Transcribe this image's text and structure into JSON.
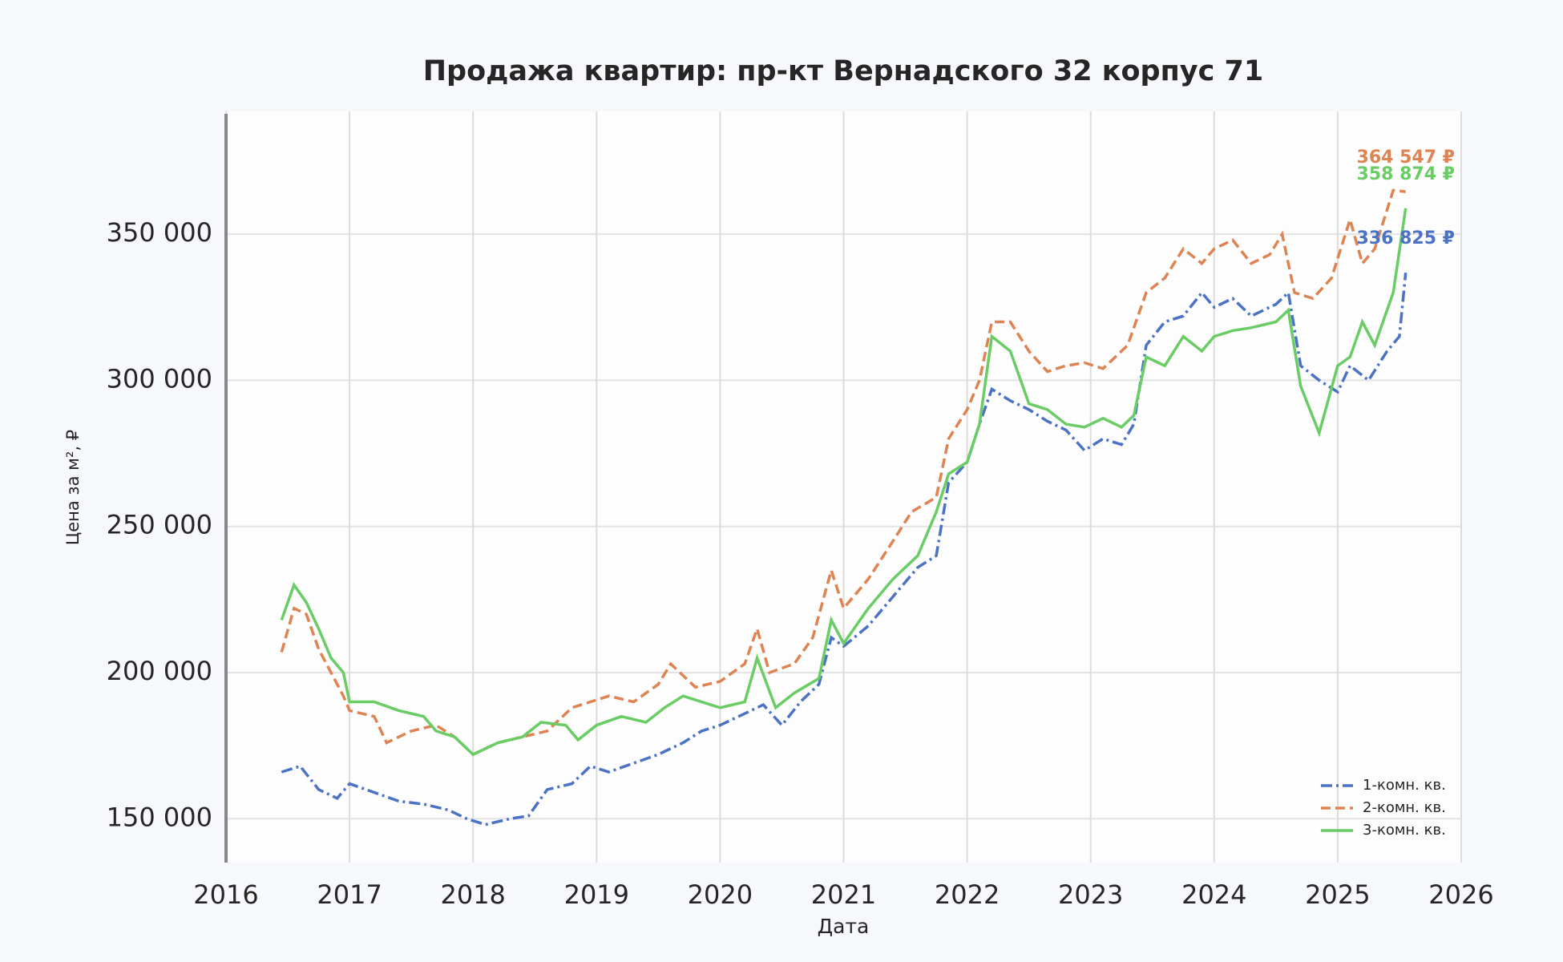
{
  "chart_data": {
    "type": "line",
    "title": "Продажа квартир: пр-кт Вернадского 32 корпус 71",
    "x_label": "Дата",
    "y_label": "Цена за м², ₽",
    "xlim": [
      2016,
      2026
    ],
    "xticks": [
      2016,
      2017,
      2018,
      2019,
      2020,
      2021,
      2022,
      2023,
      2024,
      2025,
      2026
    ],
    "ylim": [
      135000,
      392000
    ],
    "yticks": [
      {
        "value": 150000,
        "label": "150 000"
      },
      {
        "value": 200000,
        "label": "200 000"
      },
      {
        "value": 250000,
        "label": "250 000"
      },
      {
        "value": 300000,
        "label": "300 000"
      },
      {
        "value": 350000,
        "label": "350 000"
      }
    ],
    "grid": true,
    "legend": "lower right",
    "series": [
      {
        "name": "1-комн. кв.",
        "color": "#4c72c4",
        "linestyle": "dashdot",
        "x": [
          2016.45,
          2016.6,
          2016.75,
          2016.9,
          2017.0,
          2017.2,
          2017.4,
          2017.6,
          2017.8,
          2017.95,
          2018.1,
          2018.3,
          2018.45,
          2018.6,
          2018.8,
          2018.95,
          2019.1,
          2019.3,
          2019.5,
          2019.7,
          2019.85,
          2020.0,
          2020.2,
          2020.35,
          2020.5,
          2020.65,
          2020.8,
          2020.9,
          2021.0,
          2021.2,
          2021.4,
          2021.6,
          2021.75,
          2021.85,
          2022.0,
          2022.1,
          2022.2,
          2022.35,
          2022.5,
          2022.65,
          2022.8,
          2022.95,
          2023.1,
          2023.25,
          2023.35,
          2023.45,
          2023.6,
          2023.75,
          2023.9,
          2024.0,
          2024.15,
          2024.3,
          2024.5,
          2024.6,
          2024.7,
          2024.85,
          2025.0,
          2025.1,
          2025.25,
          2025.4,
          2025.5,
          2025.55
        ],
        "values": [
          166000,
          168000,
          160000,
          157000,
          162000,
          159000,
          156000,
          155000,
          153000,
          150000,
          148000,
          150000,
          151000,
          160000,
          162000,
          168000,
          166000,
          169000,
          172000,
          176000,
          180000,
          182000,
          186000,
          189000,
          182000,
          190000,
          196000,
          212000,
          209000,
          216000,
          226000,
          236000,
          240000,
          265000,
          272000,
          285000,
          297000,
          293000,
          290000,
          286000,
          283000,
          276000,
          280000,
          278000,
          285000,
          312000,
          320000,
          322000,
          330000,
          325000,
          328000,
          322000,
          326000,
          330000,
          305000,
          300000,
          296000,
          305000,
          300000,
          310000,
          315000,
          336825
        ],
        "value_labels": [
          null,
          null,
          null,
          null,
          null,
          null,
          null,
          null,
          null,
          null,
          null,
          null,
          null,
          null,
          null,
          null,
          null,
          null,
          null,
          null,
          null,
          null,
          null,
          null,
          null,
          null,
          null,
          null,
          null,
          null,
          null,
          null,
          null,
          null,
          null,
          null,
          null,
          null,
          null,
          null,
          null,
          null,
          null,
          null,
          null,
          null,
          null,
          null,
          null,
          null,
          null,
          null,
          null,
          null,
          null,
          null,
          null,
          null,
          null,
          null,
          null,
          "336 825 ₽"
        ]
      },
      {
        "name": "2-комн. кв.",
        "color": "#dd8452",
        "linestyle": "dashed",
        "x": [
          2016.45,
          2016.55,
          2016.65,
          2016.75,
          2016.85,
          2016.95,
          2017.0,
          2017.2,
          2017.3,
          2017.5,
          2017.7,
          2017.85,
          2018.0,
          2018.2,
          2018.4,
          2018.6,
          2018.8,
          2018.95,
          2019.1,
          2019.3,
          2019.5,
          2019.6,
          2019.8,
          2020.0,
          2020.2,
          2020.3,
          2020.4,
          2020.6,
          2020.75,
          2020.9,
          2021.0,
          2021.2,
          2021.4,
          2021.55,
          2021.75,
          2021.85,
          2022.0,
          2022.1,
          2022.2,
          2022.35,
          2022.5,
          2022.65,
          2022.8,
          2022.95,
          2023.1,
          2023.3,
          2023.45,
          2023.6,
          2023.75,
          2023.9,
          2024.0,
          2024.15,
          2024.3,
          2024.45,
          2024.55,
          2024.65,
          2024.8,
          2024.95,
          2025.1,
          2025.2,
          2025.3,
          2025.45,
          2025.55
        ],
        "values": [
          207000,
          222000,
          220000,
          208000,
          200000,
          192000,
          187000,
          185000,
          176000,
          180000,
          182000,
          178000,
          172000,
          176000,
          178000,
          180000,
          188000,
          190000,
          192000,
          190000,
          196000,
          203000,
          195000,
          197000,
          203000,
          215000,
          200000,
          203000,
          212000,
          235000,
          222000,
          232000,
          245000,
          255000,
          260000,
          280000,
          290000,
          300000,
          320000,
          320000,
          310000,
          303000,
          305000,
          306000,
          304000,
          312000,
          330000,
          335000,
          345000,
          340000,
          345000,
          348000,
          340000,
          343000,
          350000,
          330000,
          328000,
          335000,
          355000,
          340000,
          345000,
          365000,
          364547
        ],
        "value_labels": [
          null,
          null,
          null,
          null,
          null,
          null,
          null,
          null,
          null,
          null,
          null,
          null,
          null,
          null,
          null,
          null,
          null,
          null,
          null,
          null,
          null,
          null,
          null,
          null,
          null,
          null,
          null,
          null,
          null,
          null,
          null,
          null,
          null,
          null,
          null,
          null,
          null,
          null,
          null,
          null,
          null,
          null,
          null,
          null,
          null,
          null,
          null,
          null,
          null,
          null,
          null,
          null,
          null,
          null,
          null,
          null,
          null,
          null,
          null,
          null,
          null,
          null,
          "364 547 ₽"
        ]
      },
      {
        "name": "3-комн. кв.",
        "color": "#6acc64",
        "linestyle": "solid",
        "x": [
          2016.45,
          2016.55,
          2016.65,
          2016.75,
          2016.85,
          2016.95,
          2017.0,
          2017.2,
          2017.4,
          2017.6,
          2017.7,
          2017.85,
          2018.0,
          2018.2,
          2018.4,
          2018.55,
          2018.75,
          2018.85,
          2019.0,
          2019.2,
          2019.4,
          2019.55,
          2019.7,
          2019.85,
          2020.0,
          2020.2,
          2020.3,
          2020.45,
          2020.6,
          2020.8,
          2020.9,
          2021.0,
          2021.2,
          2021.4,
          2021.6,
          2021.75,
          2021.85,
          2022.0,
          2022.1,
          2022.2,
          2022.35,
          2022.5,
          2022.65,
          2022.8,
          2022.95,
          2023.1,
          2023.25,
          2023.35,
          2023.45,
          2023.6,
          2023.75,
          2023.9,
          2024.0,
          2024.15,
          2024.3,
          2024.5,
          2024.6,
          2024.7,
          2024.85,
          2025.0,
          2025.1,
          2025.2,
          2025.3,
          2025.45,
          2025.55
        ],
        "values": [
          218000,
          230000,
          224000,
          215000,
          205000,
          200000,
          190000,
          190000,
          187000,
          185000,
          180000,
          178000,
          172000,
          176000,
          178000,
          183000,
          182000,
          177000,
          182000,
          185000,
          183000,
          188000,
          192000,
          190000,
          188000,
          190000,
          205000,
          188000,
          193000,
          198000,
          218000,
          210000,
          222000,
          232000,
          240000,
          255000,
          268000,
          272000,
          285000,
          315000,
          310000,
          292000,
          290000,
          285000,
          284000,
          287000,
          284000,
          288000,
          308000,
          305000,
          315000,
          310000,
          315000,
          317000,
          318000,
          320000,
          324000,
          298000,
          282000,
          305000,
          308000,
          320000,
          312000,
          330000,
          358874
        ],
        "value_labels": [
          null,
          null,
          null,
          null,
          null,
          null,
          null,
          null,
          null,
          null,
          null,
          null,
          null,
          null,
          null,
          null,
          null,
          null,
          null,
          null,
          null,
          null,
          null,
          null,
          null,
          null,
          null,
          null,
          null,
          null,
          null,
          null,
          null,
          null,
          null,
          null,
          null,
          null,
          null,
          null,
          null,
          null,
          null,
          null,
          null,
          null,
          null,
          null,
          null,
          null,
          null,
          null,
          null,
          null,
          null,
          null,
          null,
          null,
          null,
          null,
          null,
          null,
          null,
          null,
          "358 874 ₽"
        ]
      }
    ]
  }
}
